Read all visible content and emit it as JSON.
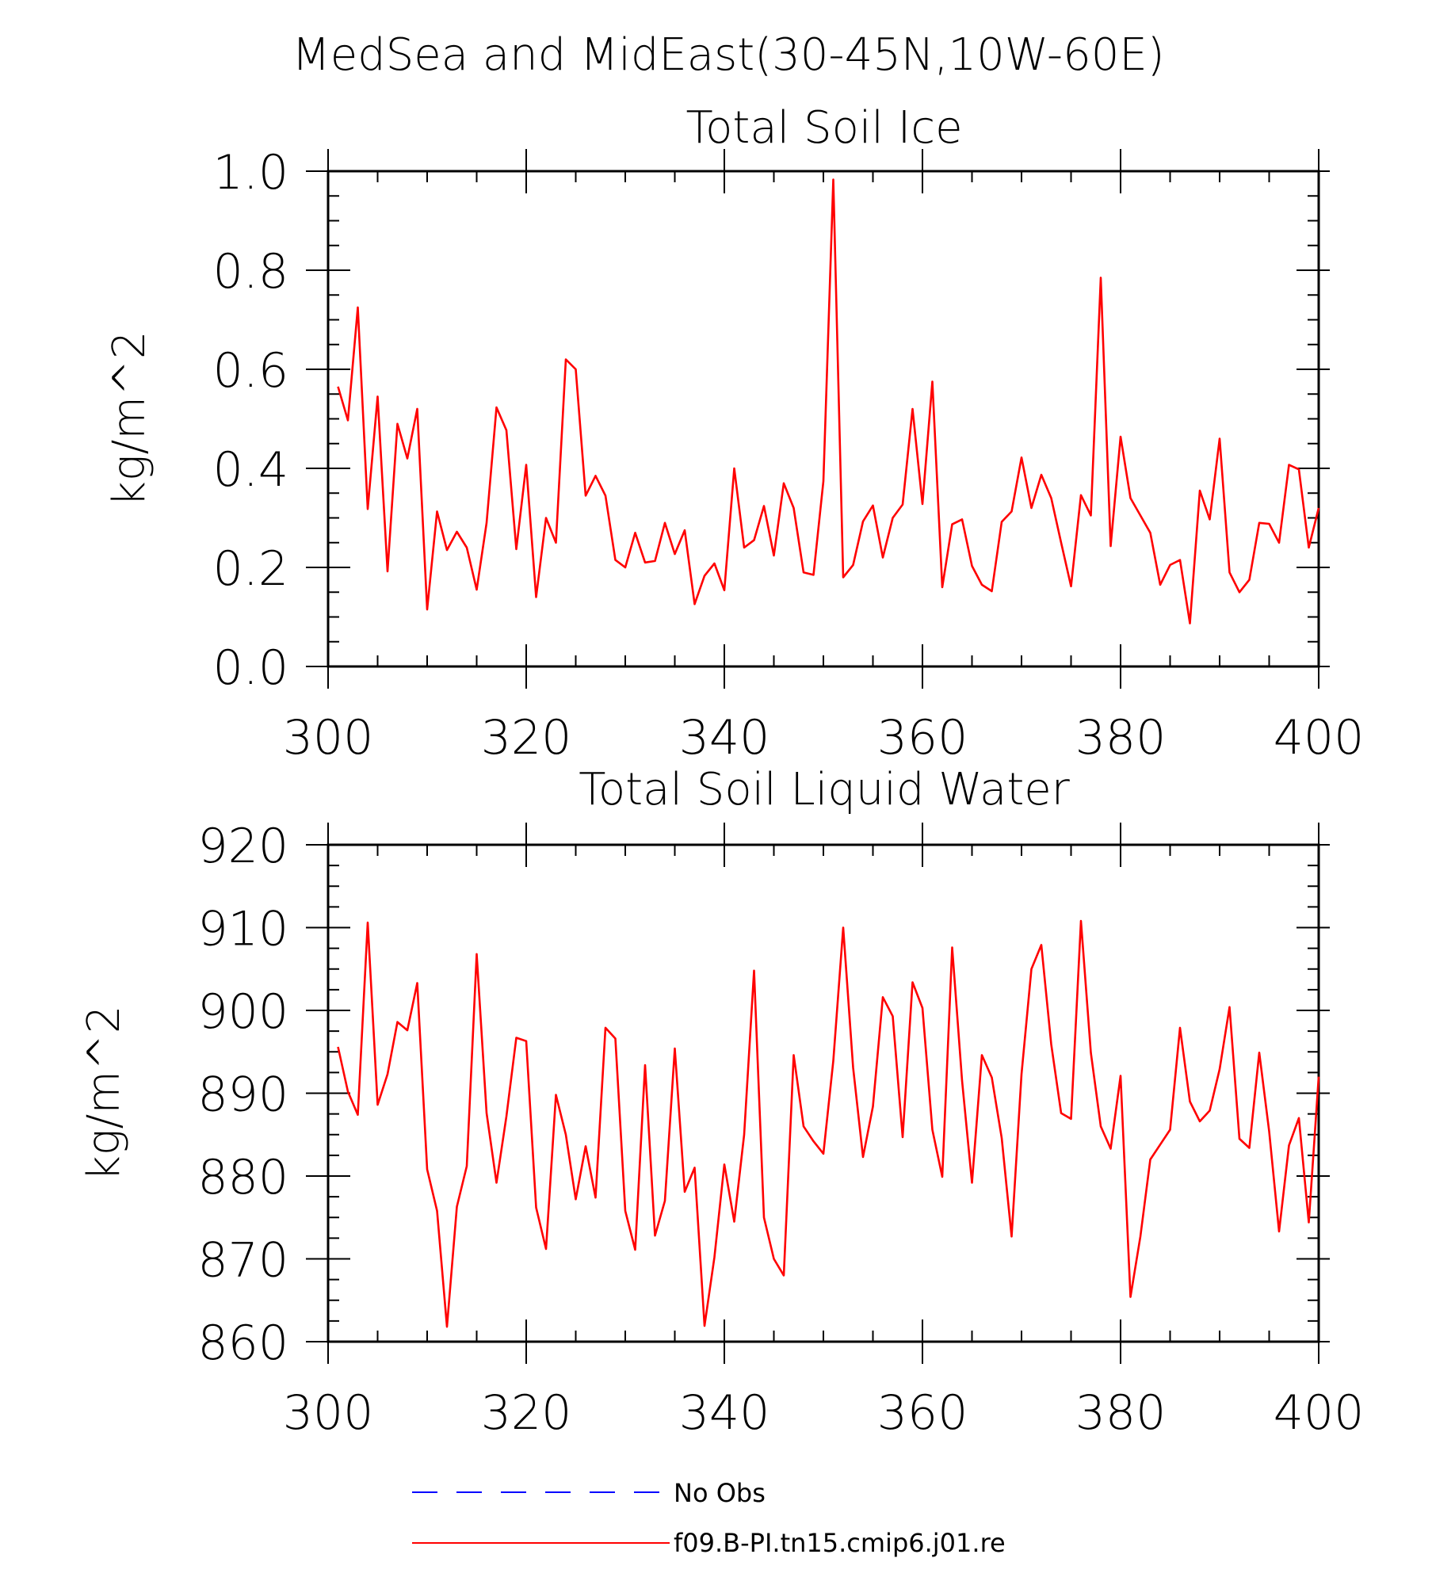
{
  "main_title": "MedSea and MidEast(30-45N,10W-60E)",
  "legend": {
    "entries": [
      {
        "label": "No Obs",
        "color": "#0000ff",
        "style": "dashed"
      },
      {
        "label": "f09.B-PI.tn15.cmip6.j01.re",
        "color": "#ff0000",
        "style": "solid"
      }
    ]
  },
  "chart_data": [
    {
      "type": "line",
      "title": "Total Soil Ice",
      "xlabel": "",
      "ylabel": "kg/m^2",
      "xlim": [
        300,
        400
      ],
      "ylim": [
        0.0,
        1.0
      ],
      "xticks": [
        "300",
        "320",
        "340",
        "360",
        "380",
        "400"
      ],
      "yticks": [
        "0.0",
        "0.2",
        "0.4",
        "0.6",
        "0.8",
        "1.0"
      ],
      "grid": false,
      "series": [
        {
          "color": "#ff0000",
          "x": [
            301,
            302,
            303,
            304,
            305,
            306,
            307,
            308,
            309,
            310,
            311,
            312,
            313,
            314,
            315,
            316,
            317,
            318,
            319,
            320,
            321,
            322,
            323,
            324,
            325,
            326,
            327,
            328,
            329,
            330,
            331,
            332,
            333,
            334,
            335,
            336,
            337,
            338,
            339,
            340,
            341,
            342,
            343,
            344,
            345,
            346,
            347,
            348,
            349,
            350,
            351,
            352,
            353,
            354,
            355,
            356,
            357,
            358,
            359,
            360,
            361,
            362,
            363,
            364,
            365,
            366,
            367,
            368,
            369,
            370,
            371,
            372,
            373,
            374,
            375,
            376,
            377,
            378,
            379,
            380,
            381,
            382,
            383,
            384,
            385,
            386,
            387,
            388,
            389,
            390,
            391,
            392,
            393,
            394,
            395,
            396,
            397,
            398,
            399,
            400
          ],
          "values": [
            0.565,
            0.497,
            0.725,
            0.318,
            0.545,
            0.192,
            0.49,
            0.42,
            0.52,
            0.115,
            0.313,
            0.235,
            0.272,
            0.24,
            0.155,
            0.29,
            0.523,
            0.477,
            0.237,
            0.407,
            0.14,
            0.3,
            0.25,
            0.62,
            0.6,
            0.345,
            0.385,
            0.345,
            0.215,
            0.2,
            0.27,
            0.21,
            0.213,
            0.29,
            0.227,
            0.275,
            0.126,
            0.183,
            0.208,
            0.154,
            0.4,
            0.24,
            0.255,
            0.324,
            0.224,
            0.37,
            0.32,
            0.19,
            0.185,
            0.374,
            0.983,
            0.18,
            0.205,
            0.293,
            0.325,
            0.22,
            0.3,
            0.327,
            0.52,
            0.328,
            0.575,
            0.16,
            0.287,
            0.297,
            0.203,
            0.165,
            0.152,
            0.292,
            0.313,
            0.422,
            0.32,
            0.387,
            0.34,
            0.25,
            0.162,
            0.346,
            0.305,
            0.785,
            0.243,
            0.464,
            0.34,
            0.305,
            0.27,
            0.165,
            0.205,
            0.215,
            0.087,
            0.355,
            0.297,
            0.46,
            0.19,
            0.15,
            0.175,
            0.29,
            0.288,
            0.25,
            0.407,
            0.398,
            0.24,
            0.32
          ]
        }
      ]
    },
    {
      "type": "line",
      "title": "Total Soil Liquid Water",
      "xlabel": "",
      "ylabel": "kg/m^2",
      "xlim": [
        300,
        400
      ],
      "ylim": [
        860,
        920
      ],
      "xticks": [
        "300",
        "320",
        "340",
        "360",
        "380",
        "400"
      ],
      "yticks": [
        "860",
        "870",
        "880",
        "890",
        "900",
        "910",
        "920"
      ],
      "grid": false,
      "series": [
        {
          "color": "#ff0000",
          "x": [
            301,
            302,
            303,
            304,
            305,
            306,
            307,
            308,
            309,
            310,
            311,
            312,
            313,
            314,
            315,
            316,
            317,
            318,
            319,
            320,
            321,
            322,
            323,
            324,
            325,
            326,
            327,
            328,
            329,
            330,
            331,
            332,
            333,
            334,
            335,
            336,
            337,
            338,
            339,
            340,
            341,
            342,
            343,
            344,
            345,
            346,
            347,
            348,
            349,
            350,
            351,
            352,
            353,
            354,
            355,
            356,
            357,
            358,
            359,
            360,
            361,
            362,
            363,
            364,
            365,
            366,
            367,
            368,
            369,
            370,
            371,
            372,
            373,
            374,
            375,
            376,
            377,
            378,
            379,
            380,
            381,
            382,
            383,
            384,
            385,
            386,
            387,
            388,
            389,
            390,
            391,
            392,
            393,
            394,
            395,
            396,
            397,
            398,
            399,
            400
          ],
          "values": [
            895.6,
            890.2,
            887.4,
            910.6,
            888.6,
            892.3,
            898.6,
            897.6,
            903.3,
            880.8,
            875.8,
            861.8,
            876.3,
            881.2,
            906.8,
            887.6,
            879.2,
            887.2,
            896.7,
            896.3,
            876.2,
            871.2,
            889.8,
            885.0,
            877.2,
            883.6,
            877.4,
            897.9,
            896.6,
            875.8,
            871.1,
            893.4,
            872.8,
            877.0,
            895.4,
            878.1,
            881.0,
            861.9,
            870.2,
            881.4,
            874.5,
            885.0,
            904.8,
            875.0,
            870.0,
            868.0,
            894.6,
            886.0,
            884.2,
            882.7,
            893.9,
            910.0,
            893.1,
            882.3,
            888.4,
            901.6,
            899.3,
            884.7,
            903.4,
            900.3,
            885.6,
            879.9,
            907.6,
            891.5,
            879.2,
            894.6,
            891.9,
            884.6,
            872.7,
            892.3,
            905.0,
            907.9,
            895.9,
            887.6,
            886.9,
            910.8,
            894.9,
            886.0,
            883.3,
            892.1,
            865.4,
            872.7,
            882.0,
            883.8,
            885.6,
            897.9,
            889.0,
            886.6,
            887.9,
            892.9,
            900.4,
            884.5,
            883.4,
            894.9,
            885.4,
            873.3,
            883.7,
            887.0,
            874.4,
            892.0
          ]
        }
      ]
    }
  ]
}
